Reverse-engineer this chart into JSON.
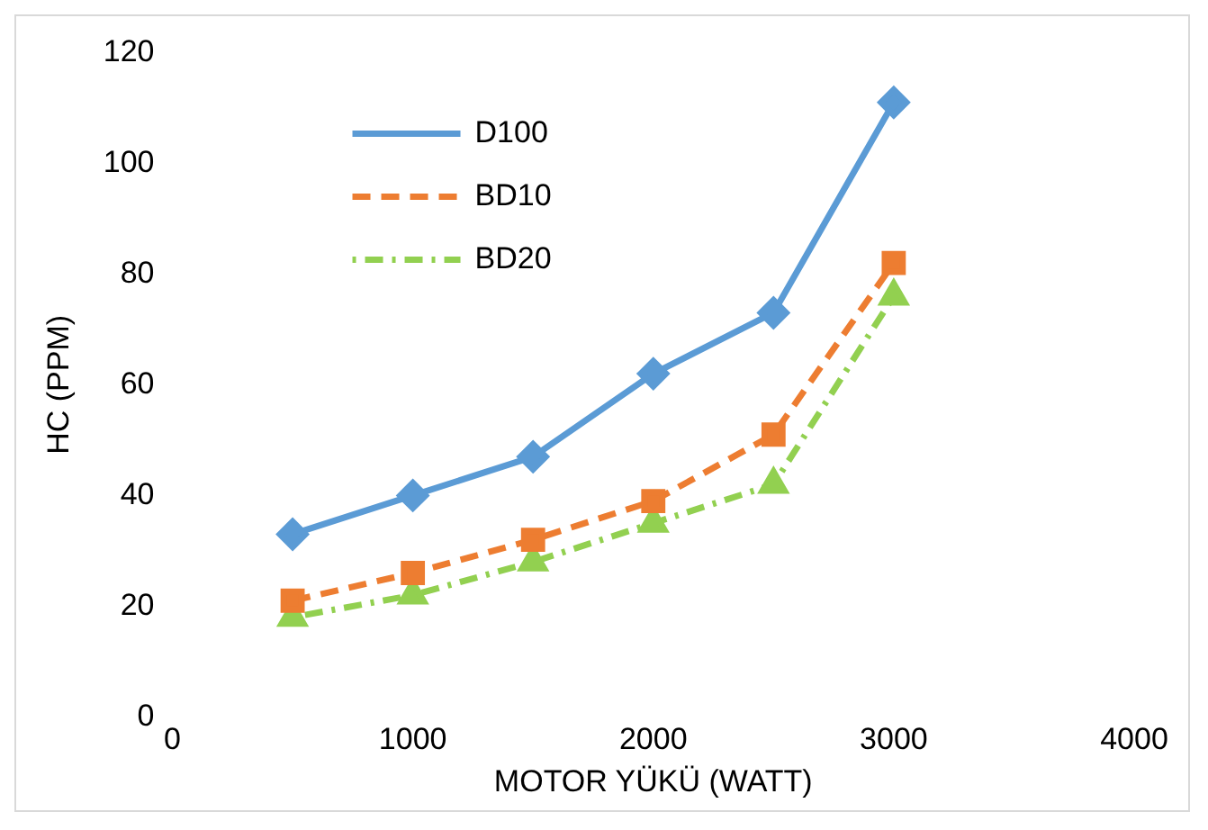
{
  "chart_data": {
    "type": "line",
    "xlabel": "MOTOR YÜKÜ (WATT)",
    "ylabel": "HC (PPM)",
    "x": [
      500,
      1000,
      1500,
      2000,
      2500,
      3000
    ],
    "series": [
      {
        "name": "D100",
        "color": "#5b9bd5",
        "values": [
          33,
          40,
          47,
          62,
          73,
          111
        ],
        "marker": "diamond",
        "line_style": "solid"
      },
      {
        "name": "BD10",
        "color": "#ed7d31",
        "values": [
          21,
          26,
          32,
          39,
          51,
          82
        ],
        "marker": "square",
        "line_style": "dashed"
      },
      {
        "name": "BD20",
        "color": "#92d050",
        "values": [
          18,
          22,
          28,
          35,
          42,
          76
        ],
        "marker": "triangle",
        "line_style": "dotted"
      }
    ],
    "xlim": [
      0,
      4000
    ],
    "xticks": [
      0,
      1000,
      2000,
      3000,
      4000
    ],
    "ylim": [
      0,
      120
    ],
    "yticks": [
      0,
      20,
      40,
      60,
      80,
      100,
      120
    ],
    "grid": false,
    "legend": "top left"
  }
}
